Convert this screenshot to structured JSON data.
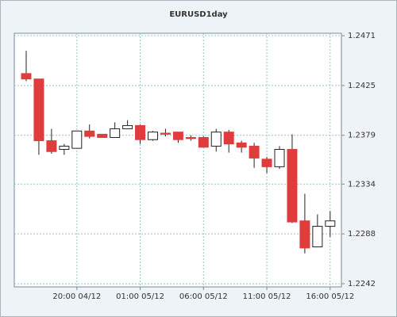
{
  "chart_data": {
    "type": "candlestick",
    "title": "EURUSD1day",
    "categories": [
      null,
      null,
      null,
      null,
      "20:00 04/12",
      null,
      null,
      null,
      null,
      "01:00 05/12",
      null,
      null,
      null,
      null,
      "06:00 05/12",
      null,
      null,
      null,
      null,
      "11:00 05/12",
      null,
      null,
      null,
      null,
      "16:00 05/12"
    ],
    "open": [
      1.2436,
      1.2431,
      1.2374,
      1.2366,
      1.2367,
      1.2383,
      1.238,
      1.2377,
      1.2385,
      1.2388,
      1.2375,
      1.2381,
      1.2382,
      1.2377,
      1.2377,
      1.2369,
      1.2382,
      1.2372,
      1.2369,
      1.2357,
      1.235,
      1.2366,
      1.23,
      1.2276,
      1.2295
    ],
    "high": [
      1.2457,
      1.2431,
      1.2385,
      1.2371,
      1.2383,
      1.2389,
      1.238,
      1.2391,
      1.2393,
      1.2389,
      1.2383,
      1.2385,
      1.2382,
      1.2379,
      1.2378,
      1.2385,
      1.2384,
      1.2374,
      1.2372,
      1.2359,
      1.2369,
      1.238,
      1.2325,
      1.2306,
      1.2309
    ],
    "low": [
      1.2429,
      1.2361,
      1.2362,
      1.2361,
      1.2367,
      1.2376,
      1.2377,
      1.2377,
      1.2385,
      1.2371,
      1.2374,
      1.2378,
      1.2372,
      1.2374,
      1.2368,
      1.2364,
      1.2363,
      1.2363,
      1.2349,
      1.2344,
      1.2348,
      1.2298,
      1.227,
      1.2276,
      1.2285
    ],
    "close": [
      1.2431,
      1.2374,
      1.2364,
      1.2369,
      1.2383,
      1.2378,
      1.2377,
      1.2385,
      1.2388,
      1.2375,
      1.2382,
      1.238,
      1.2375,
      1.2376,
      1.2368,
      1.2382,
      1.2371,
      1.2368,
      1.2358,
      1.235,
      1.2366,
      1.2299,
      1.2275,
      1.2295,
      1.23
    ],
    "up_color": "#ffffff",
    "down_color": "#e03c3c",
    "ylim": [
      1.2242,
      1.2471
    ],
    "yticks": [
      1.2242,
      1.2288,
      1.2334,
      1.2379,
      1.2425,
      1.2471
    ],
    "grid": true
  }
}
